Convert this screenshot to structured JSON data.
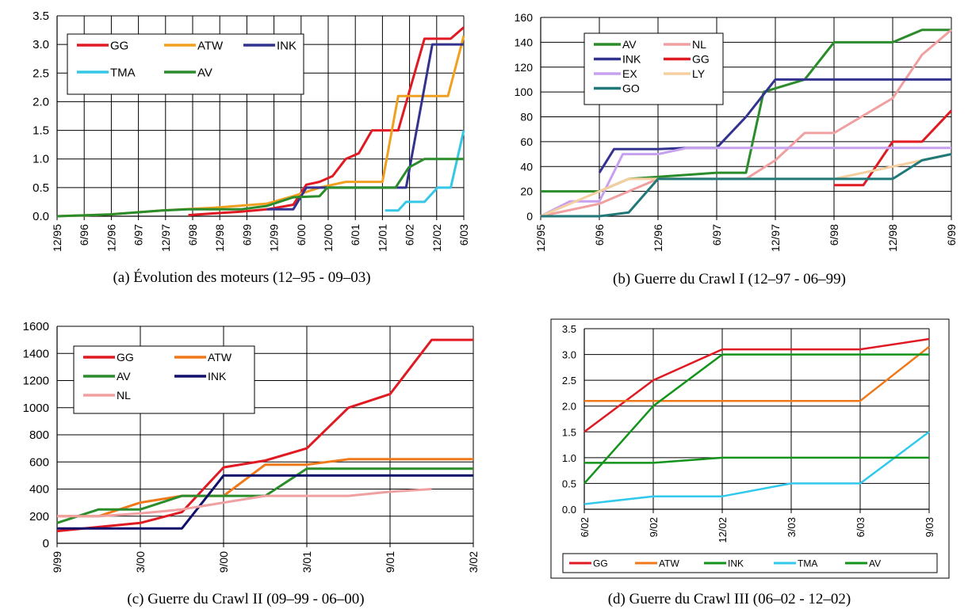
{
  "colors": {
    "GG": "#e01a22",
    "ATW": "#f0a020",
    "INK": "#33338f",
    "TMA": "#35c8e6",
    "AV": "#2b8c2b",
    "NL": "#f0a0a0",
    "EX": "#c8a0f0",
    "LY": "#f5cfa0",
    "GO": "#207878",
    "ATW_d": "#f07818",
    "INK_c": "#10106a",
    "INK_d": "#12931a",
    "AV_d": "#12931a",
    "TMA_d": "#30c8ec"
  },
  "chart_data": [
    {
      "type": "line",
      "caption": "(a) Évolution des moteurs (12–95 - 09–03)",
      "xticks": [
        "12/95",
        "6/96",
        "12/96",
        "6/97",
        "12/97",
        "6/98",
        "12/98",
        "6/99",
        "12/99",
        "6/00",
        "12/00",
        "6/01",
        "12/01",
        "6/02",
        "12/02",
        "6/03"
      ],
      "xlim": [
        0,
        15.5
      ],
      "ylim": [
        0,
        3.5
      ],
      "yticks": [
        "0.0",
        "0.5",
        "1.0",
        "1.5",
        "2.0",
        "2.5",
        "3.0",
        "3.5"
      ],
      "grid": true,
      "legend_position": "top-left",
      "legend": [
        "GG",
        "ATW",
        "INK",
        "TMA",
        "AV"
      ],
      "series": [
        {
          "name": "GG",
          "color_key": "GG",
          "points": [
            [
              5,
              0.02
            ],
            [
              6,
              0.05
            ],
            [
              7,
              0.08
            ],
            [
              8,
              0.12
            ],
            [
              9,
              0.2
            ],
            [
              9.5,
              0.55
            ],
            [
              10,
              0.6
            ],
            [
              10.5,
              0.7
            ],
            [
              11,
              1.0
            ],
            [
              11.5,
              1.1
            ],
            [
              12,
              1.5
            ],
            [
              13,
              1.5
            ],
            [
              14,
              3.1
            ],
            [
              15,
              3.1
            ],
            [
              15.5,
              3.3
            ]
          ]
        },
        {
          "name": "ATW",
          "color_key": "ATW",
          "points": [
            [
              0,
              0
            ],
            [
              2,
              0.03
            ],
            [
              4,
              0.1
            ],
            [
              6,
              0.15
            ],
            [
              8,
              0.22
            ],
            [
              9,
              0.35
            ],
            [
              10,
              0.5
            ],
            [
              11,
              0.6
            ],
            [
              12.4,
              0.6
            ],
            [
              13,
              2.1
            ],
            [
              14.9,
              2.1
            ],
            [
              15.5,
              3.15
            ]
          ]
        },
        {
          "name": "INK",
          "color_key": "INK",
          "points": [
            [
              8,
              0.12
            ],
            [
              9,
              0.12
            ],
            [
              9.5,
              0.5
            ],
            [
              13.3,
              0.5
            ],
            [
              14.3,
              3.0
            ],
            [
              15.5,
              3.0
            ]
          ]
        },
        {
          "name": "TMA",
          "color_key": "TMA",
          "points": [
            [
              12.5,
              0.1
            ],
            [
              13,
              0.1
            ],
            [
              13.3,
              0.25
            ],
            [
              14,
              0.25
            ],
            [
              14.5,
              0.5
            ],
            [
              15,
              0.5
            ],
            [
              15.5,
              1.5
            ]
          ]
        },
        {
          "name": "AV",
          "color_key": "AV",
          "points": [
            [
              0,
              0
            ],
            [
              2,
              0.03
            ],
            [
              4,
              0.1
            ],
            [
              5,
              0.12
            ],
            [
              7,
              0.12
            ],
            [
              8,
              0.18
            ],
            [
              9,
              0.33
            ],
            [
              10,
              0.35
            ],
            [
              10.3,
              0.5
            ],
            [
              12.9,
              0.5
            ],
            [
              13.4,
              0.85
            ],
            [
              14,
              1.0
            ],
            [
              15.5,
              1.0
            ]
          ]
        }
      ]
    },
    {
      "type": "line",
      "caption": "(b) Guerre du Crawl I (12–97 - 06–99)",
      "xticks": [
        "12/95",
        "6/96",
        "12/96",
        "6/97",
        "12/97",
        "6/98",
        "12/98",
        "6/99"
      ],
      "xlim": [
        0,
        7
      ],
      "ylim": [
        0,
        160
      ],
      "yticks": [
        "0",
        "20",
        "40",
        "60",
        "80",
        "100",
        "120",
        "140",
        "160"
      ],
      "grid": true,
      "legend_position": "top-left",
      "legend": [
        "AV",
        "NL",
        "INK",
        "GG",
        "EX",
        "LY",
        "GO"
      ],
      "series": [
        {
          "name": "AV",
          "color_key": "AV",
          "points": [
            [
              0,
              20
            ],
            [
              1,
              20
            ],
            [
              1.5,
              30
            ],
            [
              3,
              35
            ],
            [
              3.5,
              35
            ],
            [
              3.8,
              100
            ],
            [
              4.5,
              110
            ],
            [
              5,
              140
            ],
            [
              6,
              140
            ],
            [
              6.5,
              150
            ],
            [
              7,
              150
            ]
          ]
        },
        {
          "name": "NL",
          "color_key": "NL",
          "points": [
            [
              0,
              0
            ],
            [
              1,
              10
            ],
            [
              2,
              30
            ],
            [
              3.5,
              30
            ],
            [
              4,
              45
            ],
            [
              4.5,
              67
            ],
            [
              5,
              67
            ],
            [
              6,
              95
            ],
            [
              6.5,
              130
            ],
            [
              7,
              150
            ]
          ]
        },
        {
          "name": "INK",
          "color_key": "INK",
          "points": [
            [
              1,
              35
            ],
            [
              1.25,
              54
            ],
            [
              2,
              54
            ],
            [
              2.5,
              55
            ],
            [
              3,
              55
            ],
            [
              3.5,
              80
            ],
            [
              4,
              110
            ],
            [
              7,
              110
            ]
          ]
        },
        {
          "name": "GG",
          "color_key": "GG",
          "points": [
            [
              5,
              25
            ],
            [
              5.5,
              25
            ],
            [
              6,
              60
            ],
            [
              6.5,
              60
            ],
            [
              7,
              85
            ]
          ]
        },
        {
          "name": "EX",
          "color_key": "EX",
          "points": [
            [
              0,
              0
            ],
            [
              0.5,
              12
            ],
            [
              1,
              12
            ],
            [
              1.4,
              50
            ],
            [
              2,
              50
            ],
            [
              2.5,
              55
            ],
            [
              7,
              55
            ]
          ]
        },
        {
          "name": "LY",
          "color_key": "LY",
          "points": [
            [
              0,
              0
            ],
            [
              1,
              20
            ],
            [
              1.5,
              30
            ],
            [
              2,
              30
            ],
            [
              5,
              30
            ],
            [
              6,
              40
            ],
            [
              7,
              50
            ]
          ]
        },
        {
          "name": "GO",
          "color_key": "GO",
          "points": [
            [
              0,
              0
            ],
            [
              1,
              0
            ],
            [
              1.5,
              3
            ],
            [
              2,
              30
            ],
            [
              6,
              30
            ],
            [
              6.5,
              45
            ],
            [
              7,
              50
            ]
          ]
        }
      ]
    },
    {
      "type": "line",
      "caption": "(c) Guerre du Crawl II (09–99 - 06–00)",
      "xticks": [
        "9/99",
        "3/00",
        "9/00",
        "3/01",
        "9/01",
        "3/02"
      ],
      "xlim": [
        0,
        5
      ],
      "ylim": [
        0,
        1600
      ],
      "yticks": [
        "0",
        "200",
        "400",
        "600",
        "800",
        "1000",
        "1200",
        "1400",
        "1600"
      ],
      "grid": true,
      "legend_position": "top-left",
      "legend": [
        "GG",
        "ATW",
        "AV",
        "INK",
        "NL"
      ],
      "series": [
        {
          "name": "GG",
          "color_key": "GG",
          "points": [
            [
              0,
              90
            ],
            [
              0.5,
              120
            ],
            [
              1,
              150
            ],
            [
              1.5,
              230
            ],
            [
              2,
              560
            ],
            [
              2.5,
              610
            ],
            [
              3,
              700
            ],
            [
              3.5,
              1000
            ],
            [
              4,
              1100
            ],
            [
              4.5,
              1500
            ],
            [
              5,
              1500
            ]
          ]
        },
        {
          "name": "ATW",
          "color_key": "ATW_d",
          "points": [
            [
              0,
              200
            ],
            [
              0.5,
              200
            ],
            [
              1,
              300
            ],
            [
              1.5,
              350
            ],
            [
              2,
              350
            ],
            [
              2.5,
              580
            ],
            [
              3,
              580
            ],
            [
              3.5,
              620
            ],
            [
              5,
              620
            ]
          ]
        },
        {
          "name": "AV",
          "color_key": "AV",
          "points": [
            [
              0,
              150
            ],
            [
              0.5,
              250
            ],
            [
              1,
              250
            ],
            [
              1.5,
              350
            ],
            [
              2,
              350
            ],
            [
              2.5,
              350
            ],
            [
              3,
              550
            ],
            [
              5,
              550
            ]
          ]
        },
        {
          "name": "INK",
          "color_key": "INK_c",
          "points": [
            [
              0,
              110
            ],
            [
              1,
              110
            ],
            [
              1.5,
              110
            ],
            [
              2,
              500
            ],
            [
              5,
              500
            ]
          ]
        },
        {
          "name": "NL",
          "color_key": "NL",
          "points": [
            [
              0,
              200
            ],
            [
              0.5,
              200
            ],
            [
              1,
              220
            ],
            [
              1.5,
              250
            ],
            [
              2,
              300
            ],
            [
              2.5,
              350
            ],
            [
              3.5,
              350
            ],
            [
              4,
              380
            ],
            [
              4.5,
              400
            ]
          ]
        }
      ]
    },
    {
      "type": "line",
      "caption": "(d) Guerre du Crawl III (06–02 - 12–02)",
      "xticks": [
        "6/02",
        "9/02",
        "12/02",
        "3/03",
        "6/03",
        "9/03"
      ],
      "xlim": [
        0,
        5
      ],
      "ylim": [
        0,
        3.5
      ],
      "yticks": [
        "0.0",
        "0.5",
        "1.0",
        "1.5",
        "2.0",
        "2.5",
        "3.0",
        "3.5"
      ],
      "grid": true,
      "legend_position": "bottom",
      "legend": [
        "GG",
        "ATW",
        "INK",
        "TMA",
        "AV"
      ],
      "series": [
        {
          "name": "GG",
          "color_key": "GG",
          "points": [
            [
              0,
              1.5
            ],
            [
              1,
              2.5
            ],
            [
              2,
              3.1
            ],
            [
              3,
              3.1
            ],
            [
              4,
              3.1
            ],
            [
              5,
              3.3
            ]
          ]
        },
        {
          "name": "ATW",
          "color_key": "ATW_d",
          "points": [
            [
              0,
              2.1
            ],
            [
              4,
              2.1
            ],
            [
              5,
              3.15
            ]
          ]
        },
        {
          "name": "INK",
          "color_key": "INK_d",
          "points": [
            [
              0,
              0.5
            ],
            [
              1,
              2.0
            ],
            [
              2,
              3.0
            ],
            [
              5,
              3.0
            ]
          ]
        },
        {
          "name": "TMA",
          "color_key": "TMA_d",
          "points": [
            [
              0,
              0.1
            ],
            [
              1,
              0.25
            ],
            [
              2,
              0.25
            ],
            [
              3,
              0.5
            ],
            [
              4,
              0.5
            ],
            [
              5,
              1.5
            ]
          ]
        },
        {
          "name": "AV",
          "color_key": "AV_d",
          "points": [
            [
              0,
              0.9
            ],
            [
              1,
              0.9
            ],
            [
              2,
              1.0
            ],
            [
              5,
              1.0
            ]
          ]
        }
      ]
    }
  ]
}
